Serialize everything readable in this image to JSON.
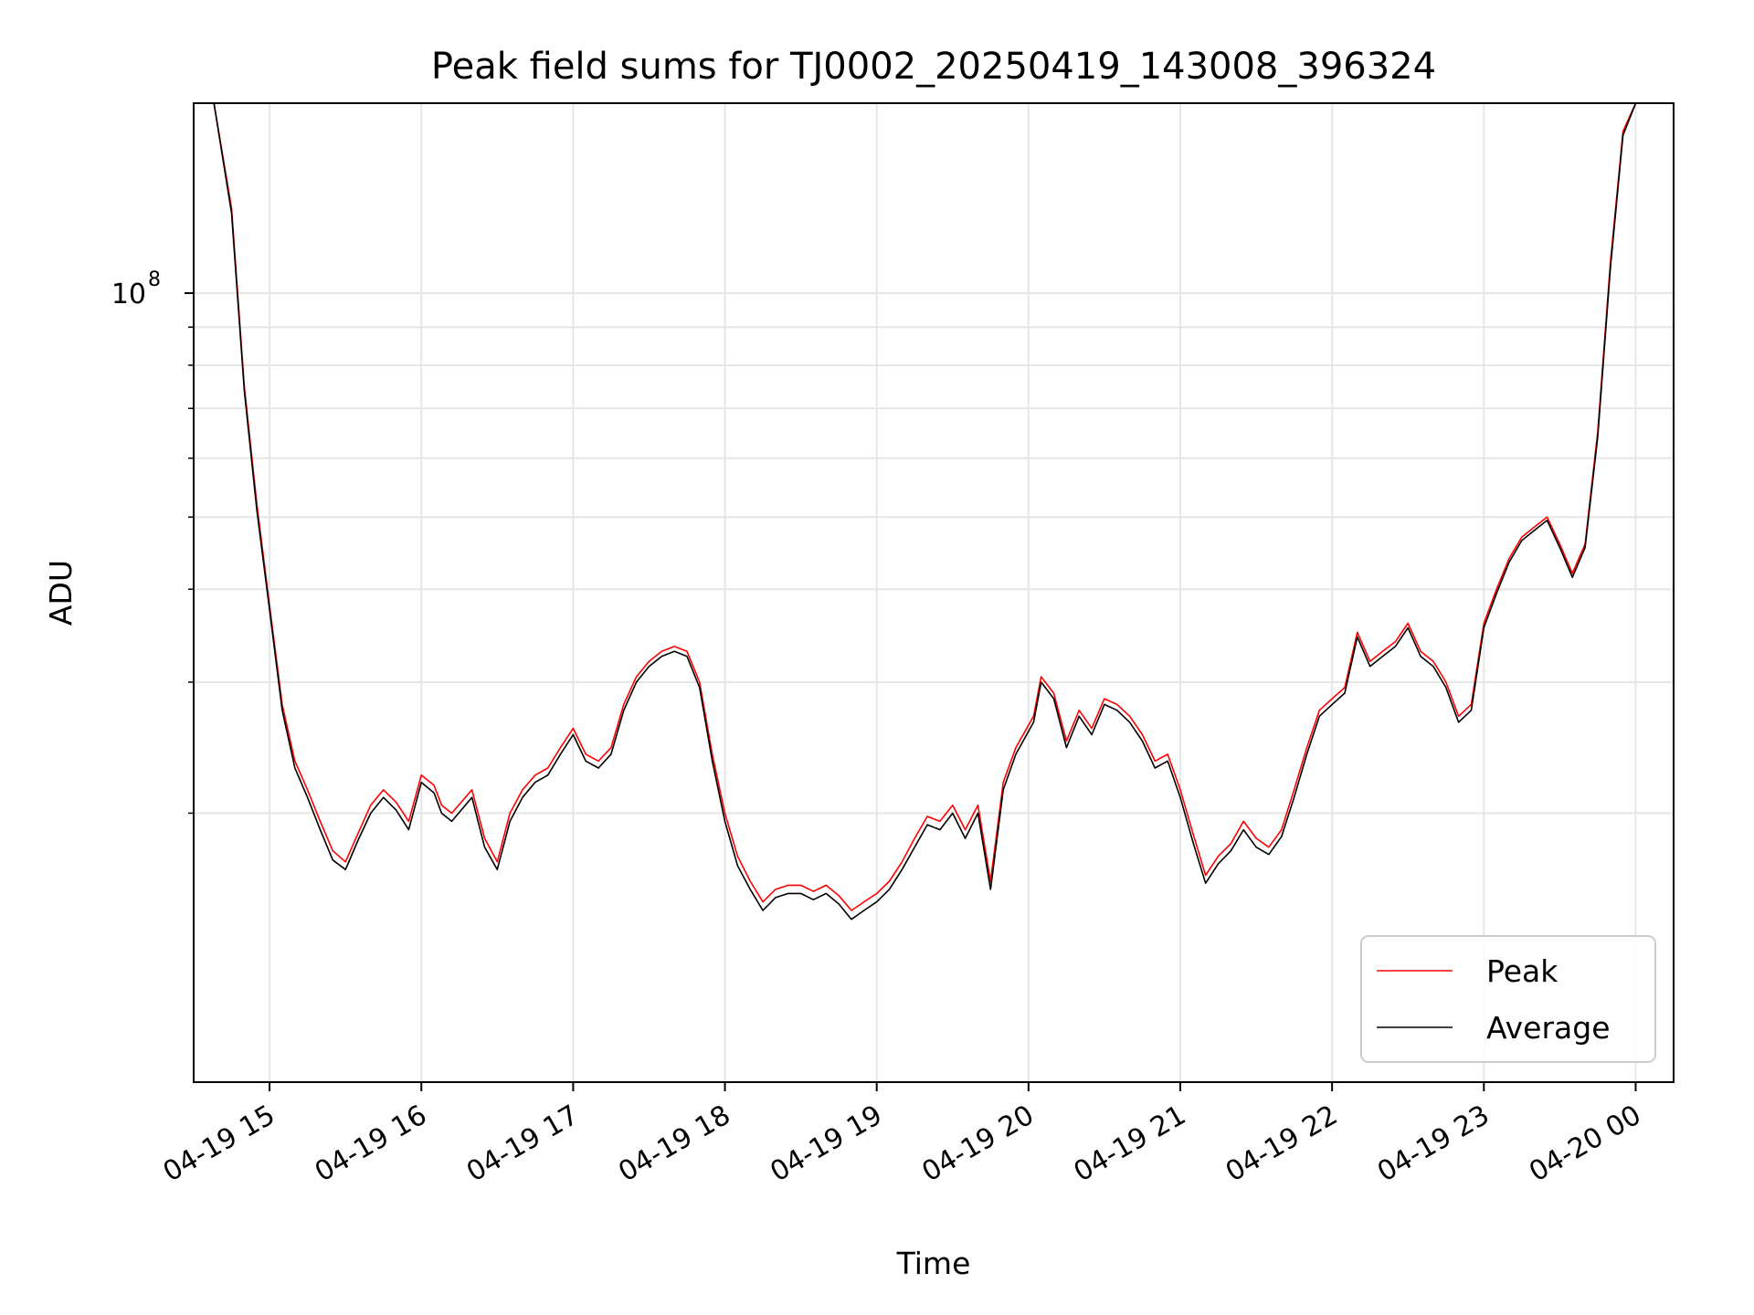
{
  "chart_data": {
    "type": "line",
    "title": "Peak field sums for TJ0002_20250419_143008_396324",
    "xlabel": "Time",
    "ylabel": "ADU",
    "y_scale": "log",
    "ylim": [
      8700000,
      180000000
    ],
    "xlim": [
      "2025-04-19 14:30",
      "2025-04-20 00:15"
    ],
    "grid": true,
    "legend_position": "lower right",
    "x_ticks": [
      {
        "t": "2025-04-19 15:00",
        "label": "04-19 15"
      },
      {
        "t": "2025-04-19 16:00",
        "label": "04-19 16"
      },
      {
        "t": "2025-04-19 17:00",
        "label": "04-19 17"
      },
      {
        "t": "2025-04-19 18:00",
        "label": "04-19 18"
      },
      {
        "t": "2025-04-19 19:00",
        "label": "04-19 19"
      },
      {
        "t": "2025-04-19 20:00",
        "label": "04-19 20"
      },
      {
        "t": "2025-04-19 21:00",
        "label": "04-19 21"
      },
      {
        "t": "2025-04-19 22:00",
        "label": "04-19 22"
      },
      {
        "t": "2025-04-19 23:00",
        "label": "04-19 23"
      },
      {
        "t": "2025-04-20 00:00",
        "label": "04-20 00"
      }
    ],
    "y_major_ticks": [
      {
        "value": 100000000,
        "label_base": "10",
        "label_exp": "8"
      }
    ],
    "y_minor_ticks": [
      20000000,
      30000000,
      40000000,
      50000000,
      60000000,
      70000000,
      80000000,
      90000000,
      200000000
    ],
    "series": [
      {
        "name": "Peak",
        "color": "#ff0000",
        "x": [
          "2025-04-19 14:38",
          "2025-04-19 14:45",
          "2025-04-19 14:50",
          "2025-04-19 14:55",
          "2025-04-19 15:00",
          "2025-04-19 15:05",
          "2025-04-19 15:10",
          "2025-04-19 15:15",
          "2025-04-19 15:20",
          "2025-04-19 15:25",
          "2025-04-19 15:30",
          "2025-04-19 15:35",
          "2025-04-19 15:40",
          "2025-04-19 15:45",
          "2025-04-19 15:50",
          "2025-04-19 15:55",
          "2025-04-19 16:00",
          "2025-04-19 16:05",
          "2025-04-19 16:08",
          "2025-04-19 16:12",
          "2025-04-19 16:20",
          "2025-04-19 16:25",
          "2025-04-19 16:30",
          "2025-04-19 16:35",
          "2025-04-19 16:40",
          "2025-04-19 16:45",
          "2025-04-19 16:50",
          "2025-04-19 16:55",
          "2025-04-19 17:00",
          "2025-04-19 17:05",
          "2025-04-19 17:10",
          "2025-04-19 17:15",
          "2025-04-19 17:20",
          "2025-04-19 17:25",
          "2025-04-19 17:30",
          "2025-04-19 17:35",
          "2025-04-19 17:40",
          "2025-04-19 17:45",
          "2025-04-19 17:50",
          "2025-04-19 17:55",
          "2025-04-19 18:00",
          "2025-04-19 18:05",
          "2025-04-19 18:10",
          "2025-04-19 18:15",
          "2025-04-19 18:20",
          "2025-04-19 18:25",
          "2025-04-19 18:30",
          "2025-04-19 18:35",
          "2025-04-19 18:40",
          "2025-04-19 18:45",
          "2025-04-19 18:50",
          "2025-04-19 18:55",
          "2025-04-19 19:00",
          "2025-04-19 19:05",
          "2025-04-19 19:10",
          "2025-04-19 19:15",
          "2025-04-19 19:20",
          "2025-04-19 19:25",
          "2025-04-19 19:30",
          "2025-04-19 19:35",
          "2025-04-19 19:40",
          "2025-04-19 19:45",
          "2025-04-19 19:50",
          "2025-04-19 19:55",
          "2025-04-19 20:02",
          "2025-04-19 20:05",
          "2025-04-19 20:10",
          "2025-04-19 20:15",
          "2025-04-19 20:20",
          "2025-04-19 20:25",
          "2025-04-19 20:30",
          "2025-04-19 20:35",
          "2025-04-19 20:40",
          "2025-04-19 20:45",
          "2025-04-19 20:50",
          "2025-04-19 20:55",
          "2025-04-19 21:00",
          "2025-04-19 21:05",
          "2025-04-19 21:10",
          "2025-04-19 21:15",
          "2025-04-19 21:20",
          "2025-04-19 21:25",
          "2025-04-19 21:30",
          "2025-04-19 21:35",
          "2025-04-19 21:40",
          "2025-04-19 21:45",
          "2025-04-19 21:50",
          "2025-04-19 21:55",
          "2025-04-19 22:00",
          "2025-04-19 22:05",
          "2025-04-19 22:10",
          "2025-04-19 22:15",
          "2025-04-19 22:20",
          "2025-04-19 22:25",
          "2025-04-19 22:30",
          "2025-04-19 22:35",
          "2025-04-19 22:40",
          "2025-04-19 22:45",
          "2025-04-19 22:50",
          "2025-04-19 22:55",
          "2025-04-19 23:00",
          "2025-04-19 23:05",
          "2025-04-19 23:10",
          "2025-04-19 23:15",
          "2025-04-19 23:20",
          "2025-04-19 23:25",
          "2025-04-19 23:30",
          "2025-04-19 23:35",
          "2025-04-19 23:40",
          "2025-04-19 23:45",
          "2025-04-19 23:50",
          "2025-04-19 23:55",
          "2025-04-20 00:00",
          "2025-04-20 00:05",
          "2025-04-20 00:13"
        ],
        "values": [
          180000000,
          130000000,
          75000000,
          52000000,
          38000000,
          28000000,
          23500000,
          21500000,
          19500000,
          17800000,
          17200000,
          18800000,
          20500000,
          21500000,
          20700000,
          19500000,
          22500000,
          21800000,
          20500000,
          20000000,
          21500000,
          18500000,
          17200000,
          20000000,
          21500000,
          22500000,
          23000000,
          24500000,
          26000000,
          24000000,
          23500000,
          24500000,
          28000000,
          30500000,
          32000000,
          33000000,
          33500000,
          33000000,
          30000000,
          24000000,
          20000000,
          17500000,
          16200000,
          15200000,
          15800000,
          16000000,
          16000000,
          15700000,
          16000000,
          15500000,
          14800000,
          15200000,
          15600000,
          16200000,
          17200000,
          18500000,
          19800000,
          19500000,
          20500000,
          19000000,
          20500000,
          16200000,
          22000000,
          24500000,
          27000000,
          30500000,
          29000000,
          25000000,
          27500000,
          26000000,
          28500000,
          28000000,
          27000000,
          25500000,
          23500000,
          24000000,
          21500000,
          18800000,
          16500000,
          17500000,
          18200000,
          19500000,
          18500000,
          18000000,
          19000000,
          21500000,
          24500000,
          27500000,
          28500000,
          29500000,
          35000000,
          32000000,
          33000000,
          34000000,
          36000000,
          33000000,
          32000000,
          30000000,
          27000000,
          28000000,
          36000000,
          40000000,
          44000000,
          47000000,
          48500000,
          50000000,
          46000000,
          42000000,
          46000000,
          65000000,
          110000000,
          165000000,
          180000000,
          180000000,
          180000000
        ]
      },
      {
        "name": "Average",
        "color": "#000000",
        "x": [
          "2025-04-19 14:38",
          "2025-04-19 14:45",
          "2025-04-19 14:50",
          "2025-04-19 14:55",
          "2025-04-19 15:00",
          "2025-04-19 15:05",
          "2025-04-19 15:10",
          "2025-04-19 15:15",
          "2025-04-19 15:20",
          "2025-04-19 15:25",
          "2025-04-19 15:30",
          "2025-04-19 15:35",
          "2025-04-19 15:40",
          "2025-04-19 15:45",
          "2025-04-19 15:50",
          "2025-04-19 15:55",
          "2025-04-19 16:00",
          "2025-04-19 16:05",
          "2025-04-19 16:08",
          "2025-04-19 16:12",
          "2025-04-19 16:20",
          "2025-04-19 16:25",
          "2025-04-19 16:30",
          "2025-04-19 16:35",
          "2025-04-19 16:40",
          "2025-04-19 16:45",
          "2025-04-19 16:50",
          "2025-04-19 16:55",
          "2025-04-19 17:00",
          "2025-04-19 17:05",
          "2025-04-19 17:10",
          "2025-04-19 17:15",
          "2025-04-19 17:20",
          "2025-04-19 17:25",
          "2025-04-19 17:30",
          "2025-04-19 17:35",
          "2025-04-19 17:40",
          "2025-04-19 17:45",
          "2025-04-19 17:50",
          "2025-04-19 17:55",
          "2025-04-19 18:00",
          "2025-04-19 18:05",
          "2025-04-19 18:10",
          "2025-04-19 18:15",
          "2025-04-19 18:20",
          "2025-04-19 18:25",
          "2025-04-19 18:30",
          "2025-04-19 18:35",
          "2025-04-19 18:40",
          "2025-04-19 18:45",
          "2025-04-19 18:50",
          "2025-04-19 18:55",
          "2025-04-19 19:00",
          "2025-04-19 19:05",
          "2025-04-19 19:10",
          "2025-04-19 19:15",
          "2025-04-19 19:20",
          "2025-04-19 19:25",
          "2025-04-19 19:30",
          "2025-04-19 19:35",
          "2025-04-19 19:40",
          "2025-04-19 19:45",
          "2025-04-19 19:50",
          "2025-04-19 19:55",
          "2025-04-19 20:02",
          "2025-04-19 20:05",
          "2025-04-19 20:10",
          "2025-04-19 20:15",
          "2025-04-19 20:20",
          "2025-04-19 20:25",
          "2025-04-19 20:30",
          "2025-04-19 20:35",
          "2025-04-19 20:40",
          "2025-04-19 20:45",
          "2025-04-19 20:50",
          "2025-04-19 20:55",
          "2025-04-19 21:00",
          "2025-04-19 21:05",
          "2025-04-19 21:10",
          "2025-04-19 21:15",
          "2025-04-19 21:20",
          "2025-04-19 21:25",
          "2025-04-19 21:30",
          "2025-04-19 21:35",
          "2025-04-19 21:40",
          "2025-04-19 21:45",
          "2025-04-19 21:50",
          "2025-04-19 21:55",
          "2025-04-19 22:00",
          "2025-04-19 22:05",
          "2025-04-19 22:10",
          "2025-04-19 22:15",
          "2025-04-19 22:20",
          "2025-04-19 22:25",
          "2025-04-19 22:30",
          "2025-04-19 22:35",
          "2025-04-19 22:40",
          "2025-04-19 22:45",
          "2025-04-19 22:50",
          "2025-04-19 22:55",
          "2025-04-19 23:00",
          "2025-04-19 23:05",
          "2025-04-19 23:10",
          "2025-04-19 23:15",
          "2025-04-19 23:20",
          "2025-04-19 23:25",
          "2025-04-19 23:30",
          "2025-04-19 23:35",
          "2025-04-19 23:40",
          "2025-04-19 23:45",
          "2025-04-19 23:50",
          "2025-04-19 23:55",
          "2025-04-20 00:00",
          "2025-04-20 00:05",
          "2025-04-20 00:13"
        ],
        "values": [
          180000000,
          128000000,
          74000000,
          51000000,
          37500000,
          27500000,
          23000000,
          21000000,
          19000000,
          17300000,
          16800000,
          18400000,
          20000000,
          21000000,
          20200000,
          19000000,
          22000000,
          21300000,
          20000000,
          19500000,
          21000000,
          18000000,
          16800000,
          19500000,
          21000000,
          22000000,
          22500000,
          24000000,
          25500000,
          23500000,
          23000000,
          24000000,
          27500000,
          30000000,
          31500000,
          32500000,
          33000000,
          32500000,
          29500000,
          23500000,
          19500000,
          17000000,
          15800000,
          14800000,
          15400000,
          15600000,
          15600000,
          15300000,
          15600000,
          15100000,
          14400000,
          14800000,
          15200000,
          15800000,
          16800000,
          18000000,
          19300000,
          19000000,
          20000000,
          18500000,
          20000000,
          15800000,
          21500000,
          24000000,
          26500000,
          30000000,
          28500000,
          24500000,
          27000000,
          25500000,
          28000000,
          27500000,
          26500000,
          25000000,
          23000000,
          23500000,
          21000000,
          18300000,
          16100000,
          17100000,
          17800000,
          19000000,
          18000000,
          17600000,
          18600000,
          21000000,
          24000000,
          27000000,
          28000000,
          29000000,
          34500000,
          31500000,
          32500000,
          33500000,
          35500000,
          32500000,
          31500000,
          29500000,
          26500000,
          27500000,
          35500000,
          39500000,
          43500000,
          46500000,
          48000000,
          49500000,
          45500000,
          41500000,
          45500000,
          64000000,
          108000000,
          163000000,
          180000000,
          180000000,
          180000000
        ]
      }
    ]
  }
}
